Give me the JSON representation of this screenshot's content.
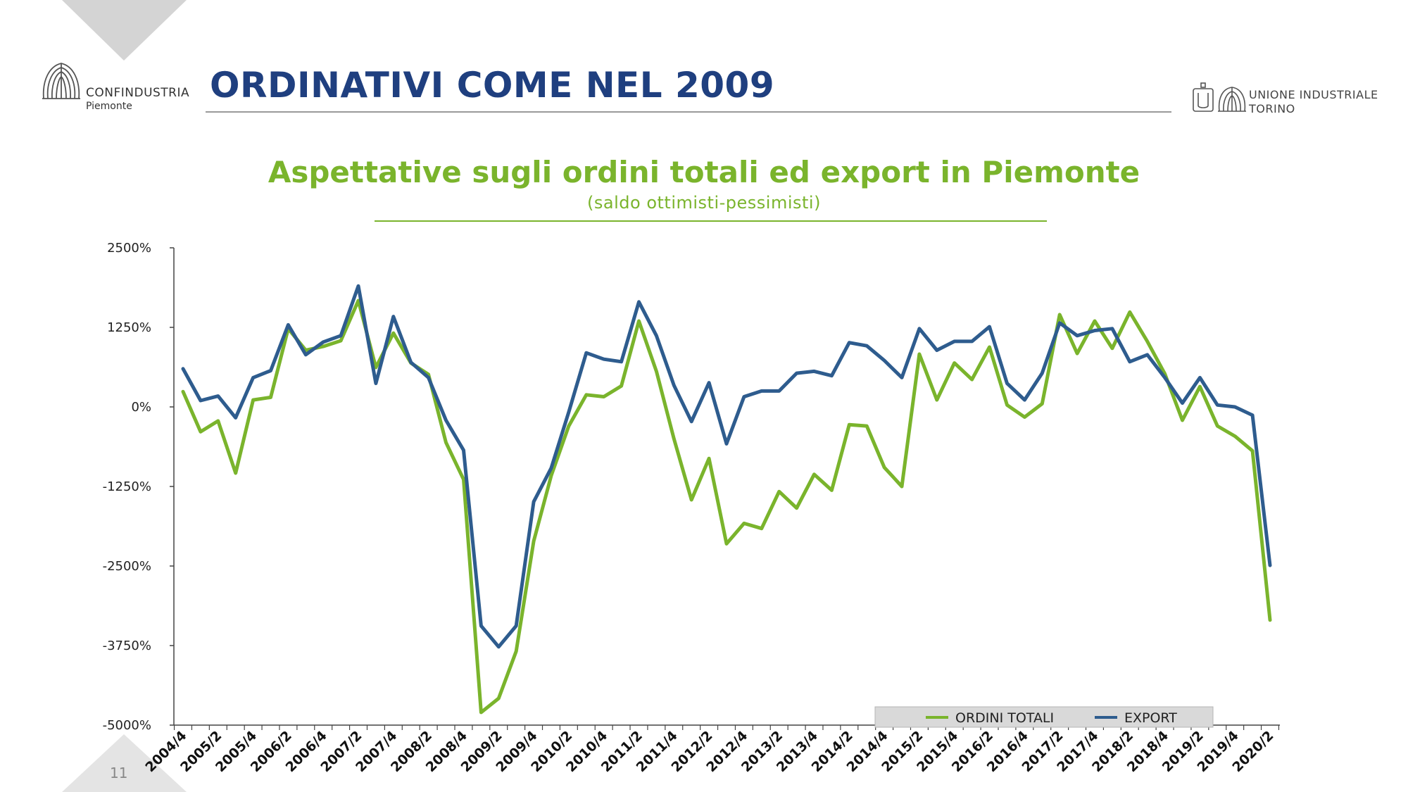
{
  "header": {
    "title": "ORDINATIVI COME NEL 2009",
    "logo_left": {
      "name": "CONFINDUSTRIA",
      "sub": "Piemonte"
    },
    "logo_right": {
      "name": "UNIONE INDUSTRIALE",
      "sub": "TORINO"
    }
  },
  "page_number": "11",
  "colors": {
    "ordini": "#7ab42c",
    "export": "#2e5c8e",
    "title": "#1f3f7f"
  },
  "chart_data": {
    "type": "line",
    "title": "Aspettative sugli ordini totali ed export in Piemonte",
    "subtitle": "(saldo ottimisti-pessimisti)",
    "ylim": [
      -5000,
      2500
    ],
    "yticks": [
      2500,
      1250,
      0,
      -1250,
      -2500,
      -3750,
      -5000
    ],
    "ytick_labels": [
      "2500%",
      "1250%",
      "0%",
      "-1250%",
      "-2500%",
      "-3750%",
      "-5000%"
    ],
    "x_labels": [
      "2004/4",
      "2005/2",
      "2005/4",
      "2006/2",
      "2006/4",
      "2007/2",
      "2007/4",
      "2008/2",
      "2008/4",
      "2009/2",
      "2009/4",
      "2010/2",
      "2010/4",
      "2011/2",
      "2011/4",
      "2012/2",
      "2012/4",
      "2013/2",
      "2013/4",
      "2014/2",
      "2014/4",
      "2015/2",
      "2015/4",
      "2016/2",
      "2016/4",
      "2017/2",
      "2017/4",
      "2018/2",
      "2018/4",
      "2019/2",
      "2019/4",
      "2020/2"
    ],
    "legend_position": "bottom-right",
    "series": [
      {
        "name": "ORDINI TOTALI",
        "values": [
          240,
          -390,
          -220,
          -1040,
          110,
          150,
          1230,
          890,
          950,
          1040,
          1670,
          620,
          1160,
          690,
          510,
          -560,
          -1140,
          -4800,
          -4580,
          -3840,
          -2110,
          -1080,
          -300,
          190,
          160,
          330,
          1350,
          560,
          -500,
          -1460,
          -810,
          -2150,
          -1830,
          -1910,
          -1330,
          -1590,
          -1060,
          -1310,
          -280,
          -300,
          -950,
          -1250,
          830,
          110,
          690,
          430,
          940,
          30,
          -160,
          50,
          1450,
          840,
          1350,
          920,
          1490,
          1030,
          520,
          -210,
          320,
          -300,
          -460,
          -690,
          -3350
        ]
      },
      {
        "name": "EXPORT",
        "values": [
          600,
          100,
          170,
          -170,
          460,
          570,
          1290,
          820,
          1020,
          1120,
          1900,
          370,
          1420,
          700,
          460,
          -210,
          -680,
          -3440,
          -3770,
          -3440,
          -1490,
          -960,
          -80,
          850,
          750,
          710,
          1650,
          1120,
          340,
          -230,
          380,
          -580,
          160,
          250,
          250,
          530,
          560,
          490,
          1010,
          960,
          730,
          460,
          1230,
          890,
          1030,
          1030,
          1260,
          370,
          110,
          530,
          1320,
          1120,
          1200,
          1230,
          710,
          820,
          460,
          60,
          460,
          30,
          0,
          -130,
          -2490
        ]
      }
    ]
  }
}
